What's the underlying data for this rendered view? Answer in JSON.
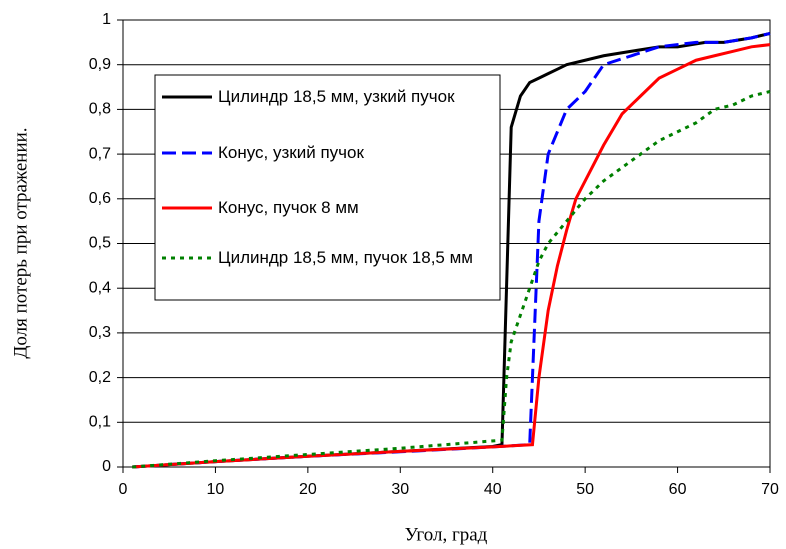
{
  "chart_data": {
    "type": "line",
    "x_label": "Угол, град",
    "y_label": "Доля потерь при отражении.",
    "xlim": [
      0,
      70
    ],
    "xticks": [
      0,
      10,
      20,
      30,
      40,
      50,
      60,
      70
    ],
    "ylim": [
      0,
      1
    ],
    "yticks": [
      0,
      {
        "value": 0.1,
        "label": "0,1"
      },
      {
        "value": 0.2,
        "label": "0,2"
      },
      {
        "value": 0.3,
        "label": "0,3"
      },
      {
        "value": 0.4,
        "label": "0,4"
      },
      {
        "value": 0.5,
        "label": "0,5"
      },
      {
        "value": 0.6,
        "label": "0,6"
      },
      {
        "value": 0.7,
        "label": "0,7"
      },
      {
        "value": 0.8,
        "label": "0,8"
      },
      {
        "value": 0.9,
        "label": "0,9"
      },
      1
    ],
    "grid": true,
    "series": [
      {
        "name": "Цилиндр 18,5 мм, узкий пучок",
        "color": "#000000",
        "line_style": "solid",
        "x": [
          1,
          10,
          20,
          30,
          40,
          41,
          42,
          43,
          44,
          45,
          46,
          47,
          48,
          50,
          52,
          55,
          58,
          60,
          63,
          65,
          68,
          70
        ],
        "values": [
          0,
          0.012,
          0.024,
          0.035,
          0.046,
          0.05,
          0.76,
          0.83,
          0.86,
          0.87,
          0.88,
          0.89,
          0.9,
          0.91,
          0.92,
          0.93,
          0.94,
          0.94,
          0.95,
          0.95,
          0.96,
          0.97
        ]
      },
      {
        "name": "Конус, узкий пучок",
        "color": "#0000ff",
        "line_style": "dashed",
        "x": [
          1,
          10,
          20,
          30,
          40,
          44,
          44.5,
          45,
          46,
          47,
          48,
          50,
          51,
          52,
          55,
          58,
          62,
          65,
          68,
          70
        ],
        "values": [
          0,
          0.012,
          0.024,
          0.034,
          0.045,
          0.05,
          0.3,
          0.55,
          0.7,
          0.75,
          0.8,
          0.84,
          0.87,
          0.9,
          0.92,
          0.94,
          0.95,
          0.95,
          0.96,
          0.97
        ]
      },
      {
        "name": "Конус,  пучок 8 мм",
        "color": "#ff0000",
        "line_style": "solid",
        "x": [
          1,
          10,
          20,
          30,
          40,
          44.3,
          45,
          46,
          47,
          48,
          49,
          50,
          52,
          54,
          56,
          58,
          60,
          62,
          64,
          66,
          68,
          70
        ],
        "values": [
          0,
          0.012,
          0.024,
          0.035,
          0.045,
          0.05,
          0.2,
          0.35,
          0.45,
          0.53,
          0.6,
          0.64,
          0.72,
          0.79,
          0.83,
          0.87,
          0.89,
          0.91,
          0.92,
          0.93,
          0.94,
          0.945
        ]
      },
      {
        "name": "Цилиндр 18,5 мм, пучок 18,5 мм",
        "color": "#008000",
        "line_style": "dotted",
        "x": [
          1,
          10,
          20,
          30,
          41,
          41.5,
          42,
          43,
          44,
          45,
          46,
          48,
          50,
          52,
          54,
          56,
          58,
          60,
          62,
          64,
          66,
          68,
          70
        ],
        "values": [
          0,
          0.014,
          0.028,
          0.042,
          0.06,
          0.2,
          0.28,
          0.34,
          0.4,
          0.46,
          0.5,
          0.55,
          0.6,
          0.64,
          0.67,
          0.7,
          0.73,
          0.75,
          0.77,
          0.8,
          0.81,
          0.83,
          0.84
        ]
      }
    ]
  }
}
